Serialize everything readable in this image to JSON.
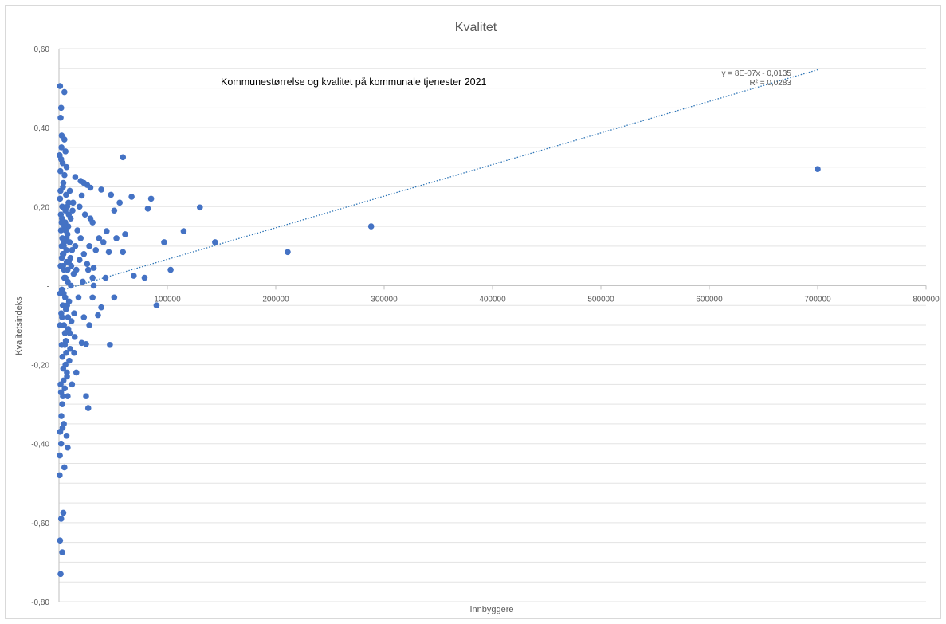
{
  "chart_data": {
    "type": "scatter",
    "title": "Kvalitet",
    "annotation": "Kommunestørrelse og kvalitet på kommunale tjenester 2021",
    "xlabel": "Innbyggere",
    "ylabel": "Kvalitetsindeks",
    "xlim": [
      0,
      800000
    ],
    "ylim": [
      -0.8,
      0.6
    ],
    "x_ticks": [
      {
        "value": 100000,
        "label": "100000"
      },
      {
        "value": 200000,
        "label": "200000"
      },
      {
        "value": 300000,
        "label": "300000"
      },
      {
        "value": 400000,
        "label": "400000"
      },
      {
        "value": 500000,
        "label": "500000"
      },
      {
        "value": 600000,
        "label": "600000"
      },
      {
        "value": 700000,
        "label": "700000"
      },
      {
        "value": 800000,
        "label": "800000"
      }
    ],
    "y_ticks": [
      {
        "value": 0.6,
        "label": "0,60"
      },
      {
        "value": 0.4,
        "label": "0,40"
      },
      {
        "value": 0.2,
        "label": "0,20"
      },
      {
        "value": 0.0,
        "label": "-"
      },
      {
        "value": -0.2,
        "label": "-0,20"
      },
      {
        "value": -0.4,
        "label": "-0,40"
      },
      {
        "value": -0.6,
        "label": "-0,60"
      },
      {
        "value": -0.8,
        "label": "-0,80"
      }
    ],
    "grid": true,
    "series_color": "#4472c4",
    "trendline": {
      "equation": "y = 8E-07x - 0,0135",
      "r_squared": "R² = 0,0283",
      "slope": 8e-07,
      "intercept": -0.0135,
      "x_range": [
        0,
        700000
      ],
      "color": "#2e75b6"
    },
    "points": [
      [
        700000,
        0.295
      ],
      [
        288000,
        0.15
      ],
      [
        211000,
        0.085
      ],
      [
        144000,
        0.11
      ],
      [
        130000,
        0.198
      ],
      [
        115000,
        0.138
      ],
      [
        103000,
        0.04
      ],
      [
        97000,
        0.11
      ],
      [
        90000,
        -0.05
      ],
      [
        85000,
        0.22
      ],
      [
        82000,
        0.195
      ],
      [
        79000,
        0.02
      ],
      [
        67000,
        0.225
      ],
      [
        69000,
        0.025
      ],
      [
        61000,
        0.13
      ],
      [
        59000,
        0.325
      ],
      [
        59000,
        0.085
      ],
      [
        56000,
        0.21
      ],
      [
        53000,
        0.12
      ],
      [
        51000,
        0.19
      ],
      [
        51000,
        -0.03
      ],
      [
        48000,
        0.23
      ],
      [
        47000,
        -0.15
      ],
      [
        46000,
        0.085
      ],
      [
        44000,
        0.138
      ],
      [
        43000,
        0.02
      ],
      [
        41000,
        0.11
      ],
      [
        39000,
        0.243
      ],
      [
        39000,
        -0.055
      ],
      [
        37000,
        0.12
      ],
      [
        36000,
        -0.075
      ],
      [
        34000,
        0.09
      ],
      [
        32000,
        0.045
      ],
      [
        32000,
        0.0
      ],
      [
        31000,
        0.16
      ],
      [
        31000,
        0.02
      ],
      [
        31000,
        -0.03
      ],
      [
        29000,
        0.17
      ],
      [
        29000,
        0.248
      ],
      [
        28000,
        0.1
      ],
      [
        28000,
        -0.1
      ],
      [
        27000,
        -0.31
      ],
      [
        27000,
        0.04
      ],
      [
        26000,
        0.055
      ],
      [
        26000,
        0.255
      ],
      [
        25000,
        -0.28
      ],
      [
        25000,
        -0.148
      ],
      [
        24000,
        0.18
      ],
      [
        23000,
        0.26
      ],
      [
        23000,
        0.08
      ],
      [
        23000,
        -0.08
      ],
      [
        22000,
        0.01
      ],
      [
        21000,
        0.228
      ],
      [
        21000,
        -0.145
      ],
      [
        20000,
        0.265
      ],
      [
        20000,
        0.12
      ],
      [
        19000,
        0.2
      ],
      [
        19000,
        0.065
      ],
      [
        18000,
        -0.03
      ],
      [
        17000,
        0.14
      ],
      [
        16000,
        0.04
      ],
      [
        16000,
        -0.22
      ],
      [
        15000,
        0.275
      ],
      [
        15000,
        0.1
      ],
      [
        14000,
        -0.17
      ],
      [
        14000,
        -0.07
      ],
      [
        13000,
        0.21
      ],
      [
        12000,
        0.09
      ],
      [
        12000,
        -0.25
      ],
      [
        11000,
        0.0
      ],
      [
        10000,
        0.24
      ],
      [
        10000,
        -0.12
      ],
      [
        9000,
        0.18
      ],
      [
        9000,
        0.06
      ],
      [
        8000,
        -0.28
      ],
      [
        8000,
        -0.41
      ],
      [
        7000,
        0.3
      ],
      [
        7000,
        0.12
      ],
      [
        7000,
        -0.38
      ],
      [
        6000,
        0.34
      ],
      [
        6000,
        0.02
      ],
      [
        6000,
        -0.2
      ],
      [
        5000,
        0.37
      ],
      [
        5000,
        0.49
      ],
      [
        5000,
        0.15
      ],
      [
        5000,
        -0.46
      ],
      [
        4500,
        -0.35
      ],
      [
        4000,
        0.26
      ],
      [
        4000,
        -0.575
      ],
      [
        3500,
        0.08
      ],
      [
        3500,
        -0.05
      ],
      [
        3000,
        0.2
      ],
      [
        3000,
        -0.3
      ],
      [
        3000,
        -0.675
      ],
      [
        2500,
        0.38
      ],
      [
        2500,
        0.1
      ],
      [
        2500,
        -0.15
      ],
      [
        2000,
        0.45
      ],
      [
        2000,
        0.32
      ],
      [
        2000,
        -0.59
      ],
      [
        2000,
        -0.4
      ],
      [
        1500,
        0.425
      ],
      [
        1500,
        0.05
      ],
      [
        1500,
        -0.25
      ],
      [
        1500,
        -0.73
      ],
      [
        1000,
        0.505
      ],
      [
        1000,
        0.22
      ],
      [
        1000,
        -0.1
      ],
      [
        1000,
        -0.645
      ],
      [
        800,
        -0.43
      ],
      [
        600,
        -0.48
      ],
      [
        600,
        0.33
      ],
      [
        1200,
        -0.02
      ],
      [
        1800,
        0.14
      ],
      [
        2200,
        -0.33
      ],
      [
        2800,
        0.17
      ],
      [
        3200,
        -0.18
      ],
      [
        3800,
        0.05
      ],
      [
        4200,
        -0.24
      ],
      [
        4800,
        0.11
      ],
      [
        5500,
        -0.12
      ],
      [
        6500,
        0.23
      ],
      [
        7500,
        -0.05
      ],
      [
        8500,
        0.15
      ],
      [
        9500,
        -0.19
      ],
      [
        10500,
        0.07
      ],
      [
        11500,
        -0.09
      ],
      [
        12500,
        0.19
      ],
      [
        13500,
        0.03
      ],
      [
        14500,
        -0.13
      ],
      [
        1300,
        0.29
      ],
      [
        2100,
        -0.07
      ],
      [
        2600,
        0.07
      ],
      [
        3300,
        -0.36
      ],
      [
        3700,
        0.25
      ],
      [
        4300,
        -0.02
      ],
      [
        4700,
        0.04
      ],
      [
        5300,
        -0.26
      ],
      [
        5800,
        0.16
      ],
      [
        6300,
        -0.14
      ],
      [
        6800,
        0.09
      ],
      [
        7300,
        -0.22
      ],
      [
        7800,
        0.13
      ],
      [
        8300,
        -0.08
      ],
      [
        8800,
        0.21
      ],
      [
        9300,
        -0.04
      ],
      [
        9800,
        0.11
      ],
      [
        10300,
        -0.16
      ],
      [
        10800,
        0.17
      ],
      [
        11300,
        0.05
      ],
      [
        1700,
        0.18
      ],
      [
        2300,
        0.35
      ],
      [
        2700,
        -0.01
      ],
      [
        3100,
        0.12
      ],
      [
        3600,
        -0.28
      ],
      [
        4100,
        0.08
      ],
      [
        4600,
        -0.1
      ],
      [
        5100,
        0.28
      ],
      [
        5700,
        -0.03
      ],
      [
        6100,
        0.14
      ],
      [
        6600,
        -0.17
      ],
      [
        7100,
        0.06
      ],
      [
        7600,
        0.2
      ],
      [
        8100,
        0.01
      ],
      [
        8600,
        -0.11
      ],
      [
        1100,
        -0.37
      ],
      [
        1400,
        0.24
      ],
      [
        1900,
        -0.27
      ],
      [
        2400,
        0.16
      ],
      [
        2900,
        -0.08
      ],
      [
        3400,
        0.31
      ],
      [
        3900,
        -0.21
      ],
      [
        4400,
        0.1
      ],
      [
        4900,
        0.02
      ],
      [
        5400,
        -0.15
      ],
      [
        5900,
        0.19
      ],
      [
        6400,
        -0.06
      ],
      [
        6900,
        0.12
      ],
      [
        7400,
        -0.23
      ],
      [
        7900,
        0.04
      ]
    ]
  }
}
